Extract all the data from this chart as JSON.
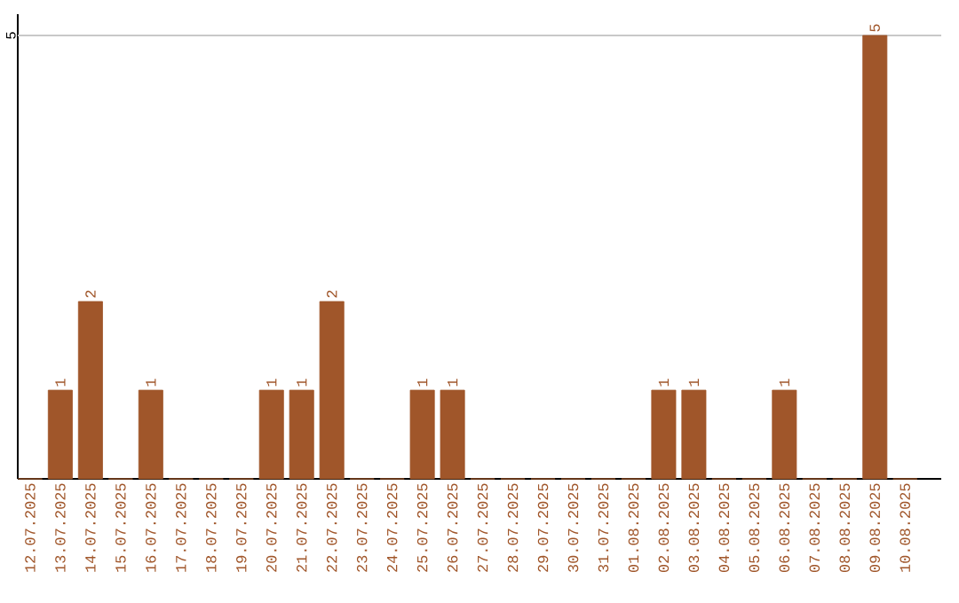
{
  "chart_data": {
    "type": "bar",
    "categories": [
      "12.07.2025",
      "13.07.2025",
      "14.07.2025",
      "15.07.2025",
      "16.07.2025",
      "17.07.2025",
      "18.07.2025",
      "19.07.2025",
      "20.07.2025",
      "21.07.2025",
      "22.07.2025",
      "23.07.2025",
      "24.07.2025",
      "25.07.2025",
      "26.07.2025",
      "27.07.2025",
      "28.07.2025",
      "29.07.2025",
      "30.07.2025",
      "31.07.2025",
      "01.08.2025",
      "02.08.2025",
      "03.08.2025",
      "04.08.2025",
      "05.08.2025",
      "06.08.2025",
      "07.08.2025",
      "08.08.2025",
      "09.08.2025",
      "10.08.2025"
    ],
    "values": [
      0,
      1,
      2,
      0,
      1,
      0,
      0,
      0,
      1,
      1,
      2,
      0,
      0,
      1,
      1,
      0,
      0,
      0,
      0,
      0,
      0,
      1,
      1,
      0,
      0,
      1,
      0,
      0,
      5,
      0
    ],
    "value_labels": [
      null,
      "1",
      "2",
      null,
      "1",
      null,
      null,
      null,
      "1",
      "1",
      "2",
      null,
      null,
      "1",
      "1",
      null,
      null,
      null,
      null,
      null,
      null,
      "1",
      "1",
      null,
      null,
      "1",
      null,
      null,
      "5",
      null
    ],
    "color": "#a0562a",
    "ylim": [
      0,
      5
    ],
    "yticks": [
      5
    ],
    "ref_lines": [
      {
        "axis": "y",
        "value": 5,
        "color": "#c8c8c8"
      }
    ]
  }
}
